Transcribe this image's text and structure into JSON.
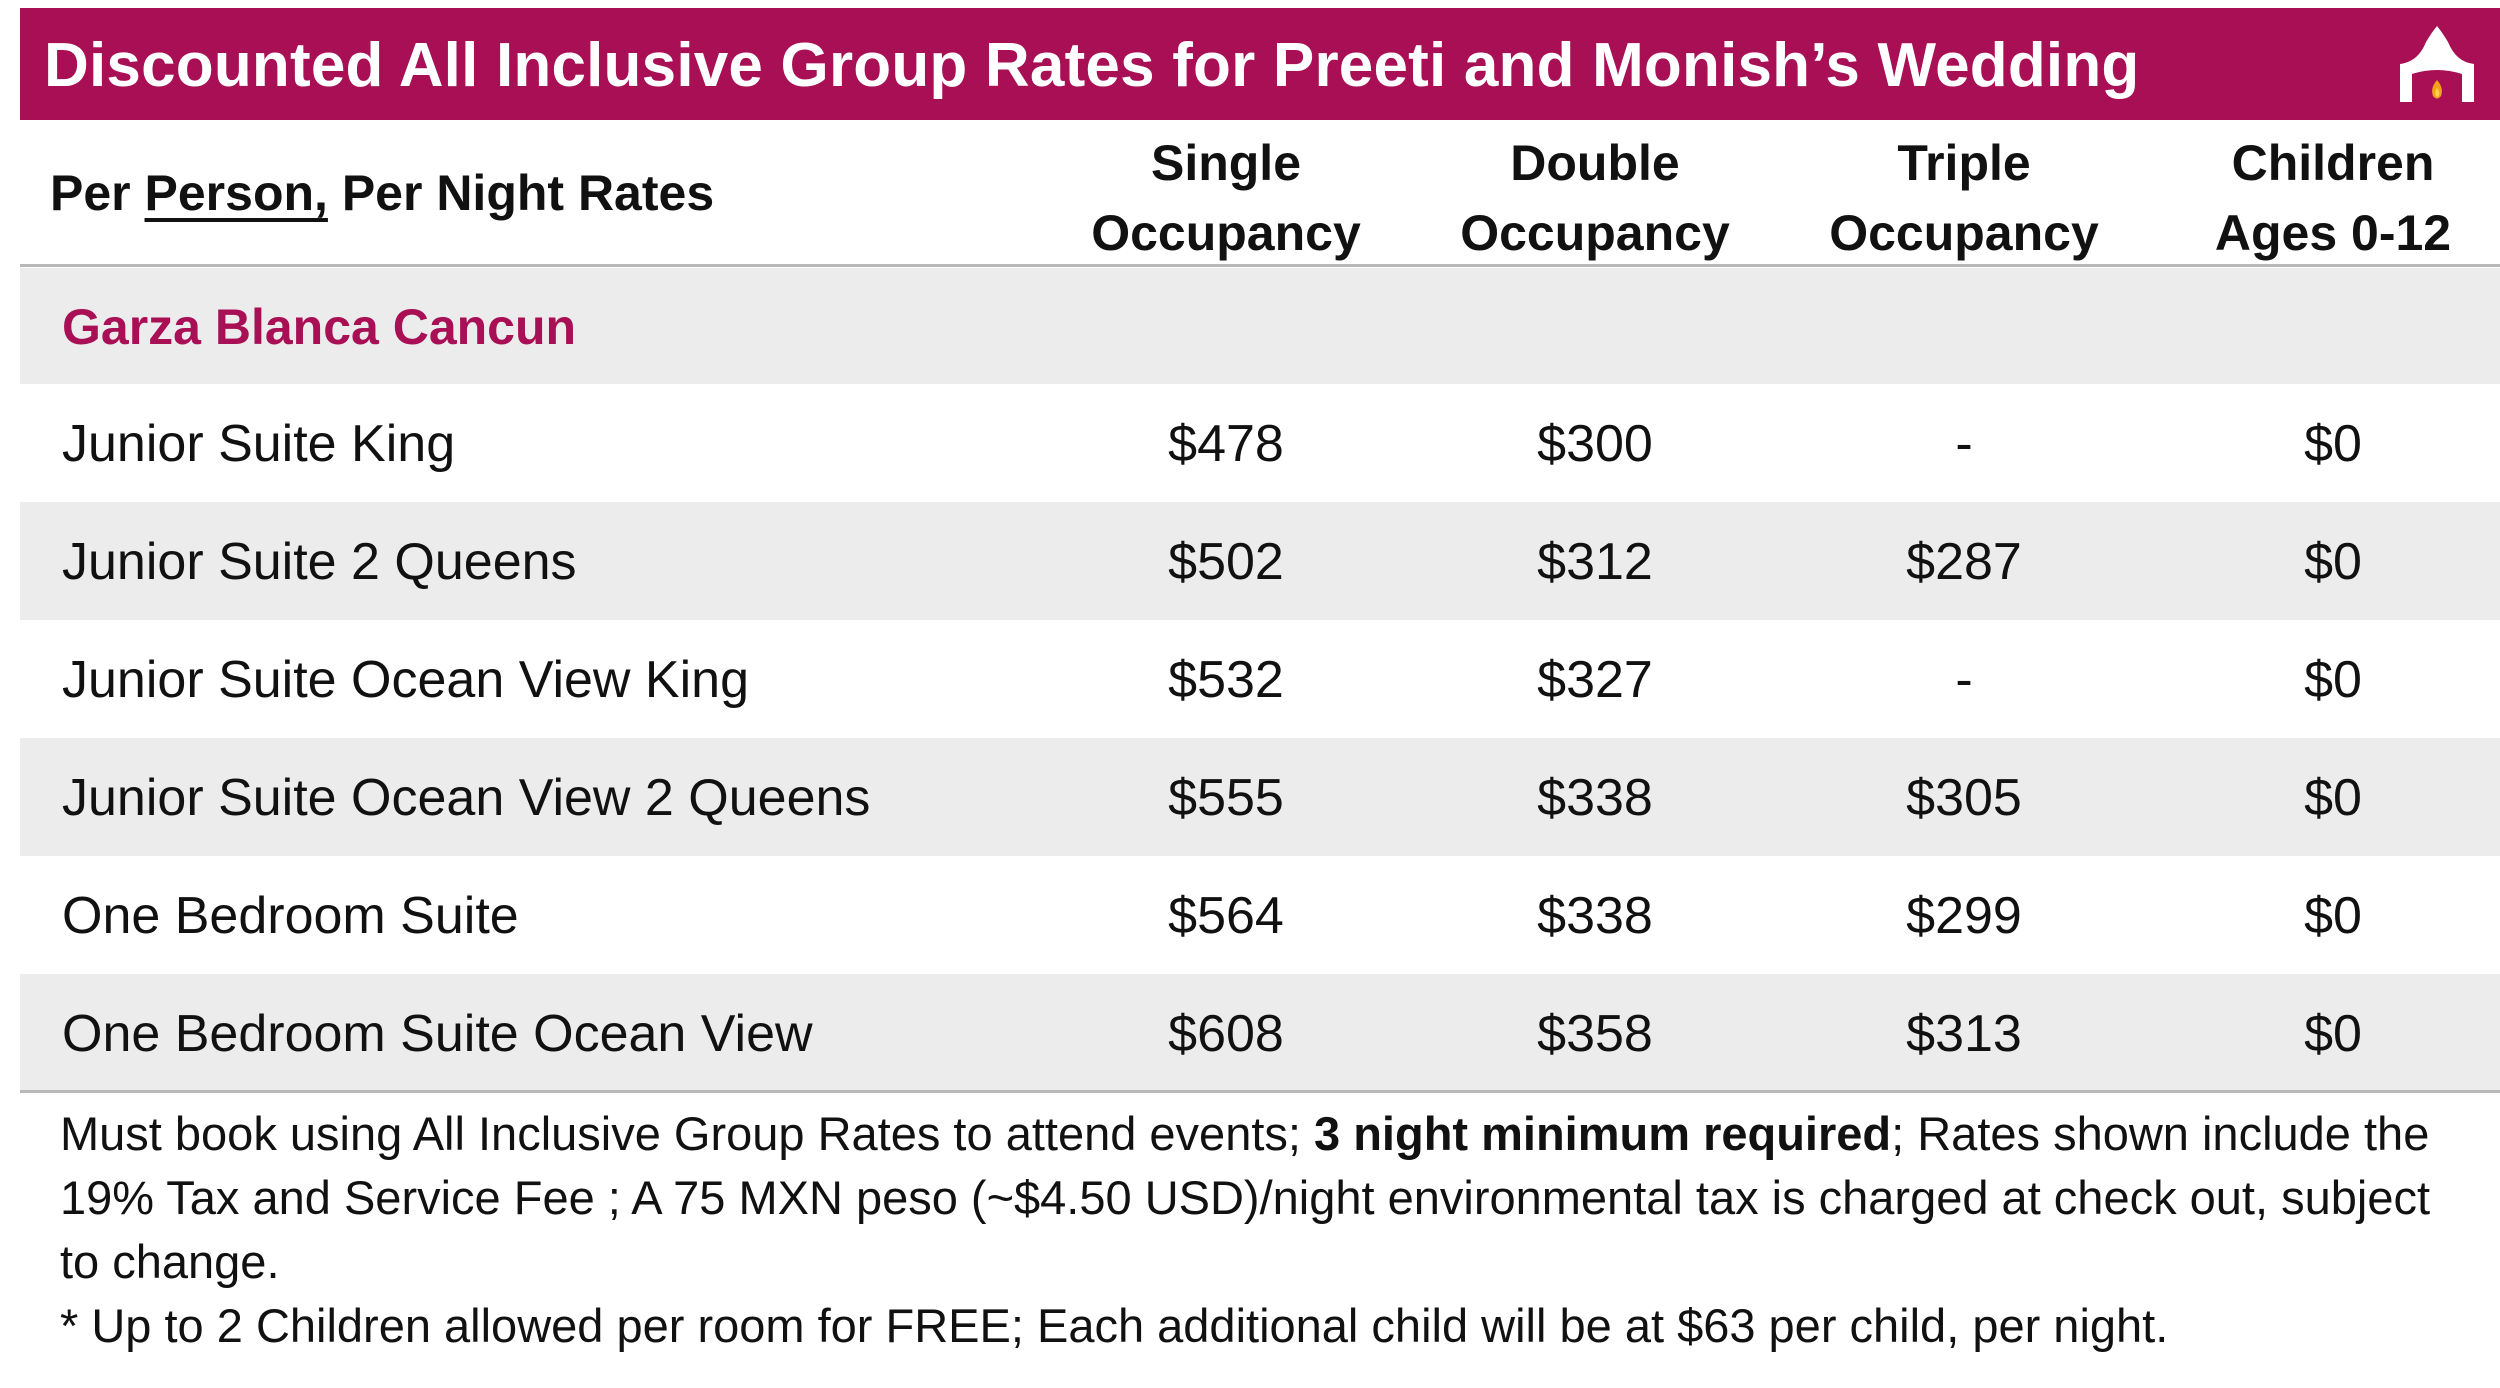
{
  "banner": {
    "title": "Discounted All Inclusive Group Rates for Preeti and Monish’s Wedding",
    "icon": "mandap-flame-icon",
    "color": "#a80f55"
  },
  "header": {
    "label_prefix": "Per ",
    "label_underlined": "Person,",
    "label_suffix": " Per Night Rates",
    "columns": [
      {
        "line1": "Single",
        "line2": "Occupancy"
      },
      {
        "line1": "Double",
        "line2": "Occupancy"
      },
      {
        "line1": "Triple",
        "line2": "Occupancy"
      },
      {
        "line1": "Children",
        "line2": "Ages 0-12"
      }
    ]
  },
  "section": {
    "title": "Garza Blanca Cancun",
    "color": "#a80f55"
  },
  "rows": [
    {
      "name": "Junior Suite King",
      "single": "$478",
      "double": "$300",
      "triple": "-",
      "children": "$0"
    },
    {
      "name": "Junior Suite 2 Queens",
      "single": "$502",
      "double": "$312",
      "triple": "$287",
      "children": "$0"
    },
    {
      "name": "Junior Suite Ocean View King",
      "single": "$532",
      "double": "$327",
      "triple": "-",
      "children": "$0"
    },
    {
      "name": "Junior Suite Ocean View 2 Queens",
      "single": "$555",
      "double": "$338",
      "triple": "$305",
      "children": "$0"
    },
    {
      "name": "One Bedroom Suite",
      "single": "$564",
      "double": "$338",
      "triple": "$299",
      "children": "$0"
    },
    {
      "name": "One Bedroom Suite Ocean View",
      "single": "$608",
      "double": "$358",
      "triple": "$313",
      "children": "$0"
    }
  ],
  "notes": {
    "line1_before": "Must book using All Inclusive Group Rates to attend events; ",
    "line1_bold": "3 night minimum required",
    "line1_after": "; Rates shown include the 19% Tax and Service Fee ; A 75 MXN peso (~$4.50 USD)/night environmental tax is charged at check out, subject to change.",
    "line2": "* Up to 2 Children allowed per room for FREE;  Each additional child will be at $63 per child, per night."
  }
}
